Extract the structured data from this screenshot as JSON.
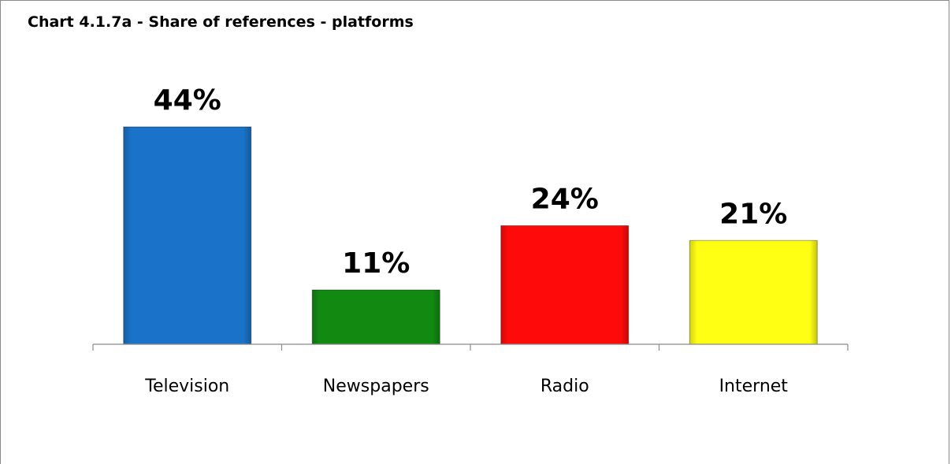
{
  "chart_data": {
    "type": "bar",
    "title": "Chart 4.1.7a - Share of references - platforms",
    "categories": [
      "Television",
      "Newspapers",
      "Radio",
      "Internet"
    ],
    "values": [
      44,
      11,
      24,
      21
    ],
    "value_labels": [
      "44%",
      "11%",
      "24%",
      "21%"
    ],
    "colors": [
      "#1a73c8",
      "#128a12",
      "#ff0a0a",
      "#ffff14"
    ],
    "xlabel": "",
    "ylabel": "",
    "ylim": [
      0,
      44
    ],
    "grid": false,
    "legend": "none"
  }
}
